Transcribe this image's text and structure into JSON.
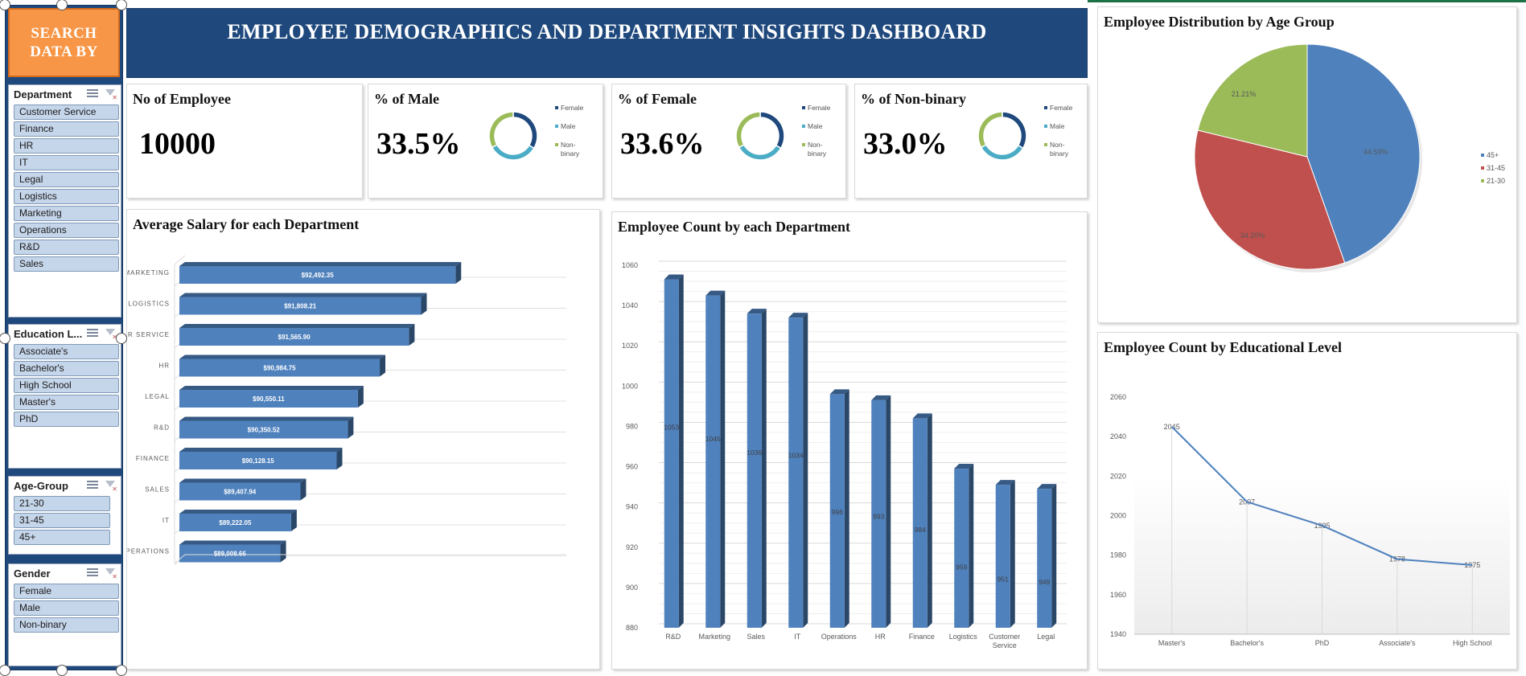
{
  "search_panel": {
    "title_line1": "SEARCH",
    "title_line2": "DATA BY"
  },
  "slicers": {
    "department": {
      "title": "Department",
      "items": [
        "Customer Service",
        "Finance",
        "HR",
        "IT",
        "Legal",
        "Logistics",
        "Marketing",
        "Operations",
        "R&D",
        "Sales"
      ]
    },
    "education": {
      "title": "Education L...",
      "items": [
        "Associate's",
        "Bachelor's",
        "High School",
        "Master's",
        "PhD"
      ]
    },
    "age_group": {
      "title": "Age-Group",
      "items": [
        "21-30",
        "31-45",
        "45+"
      ]
    },
    "gender": {
      "title": "Gender",
      "items": [
        "Female",
        "Male",
        "Non-binary"
      ]
    }
  },
  "header": {
    "title": "EMPLOYEE DEMOGRAPHICS AND DEPARTMENT INSIGHTS DASHBOARD"
  },
  "kpis": {
    "employees": {
      "title": "No of Employee",
      "value": "10000"
    },
    "male": {
      "title": "% of Male",
      "value": "33.5%"
    },
    "female": {
      "title": "% of Female",
      "value": "33.6%"
    },
    "nonbinary": {
      "title": "% of Non-binary",
      "value": "33.0%"
    },
    "legend": {
      "female": "Female",
      "male": "Male",
      "nonbinary_1": "Non-",
      "nonbinary_2": "binary"
    }
  },
  "colors": {
    "navy": "#1f497d",
    "bar_blue": "#4f81bd",
    "female": "#1f497d",
    "male": "#4bacc6",
    "nonbinary": "#9bbb59",
    "orange": "#f79646",
    "red": "#c0504d",
    "green": "#9bbb59"
  },
  "chart_data": [
    {
      "type": "bar",
      "orientation": "horizontal",
      "title": "Average Salary for each Department",
      "categories": [
        "MARKETING",
        "LOGISTICS",
        "CUSTOMER SERVICE",
        "HR",
        "LEGAL",
        "R&D",
        "FINANCE",
        "SALES",
        "IT",
        "OPERATIONS"
      ],
      "values": [
        92492.35,
        91808.21,
        91565.9,
        90984.75,
        90550.11,
        90350.52,
        90128.15,
        89407.94,
        89222.05,
        89008.66
      ],
      "labels": [
        "$92,492.35",
        "$91,808.21",
        "$91,565.90",
        "$90,984.75",
        "$90,550.11",
        "$90,350.52",
        "$90,128.15",
        "$89,407.94",
        "$89,222.05",
        "$89,008.66"
      ],
      "xlim": [
        87000,
        93000
      ]
    },
    {
      "type": "bar",
      "orientation": "vertical",
      "title": "Employee Count by each Department",
      "categories": [
        "R&D",
        "Marketing",
        "Sales",
        "IT",
        "Operations",
        "HR",
        "Finance",
        "Logistics",
        "Customer Service",
        "Legal"
      ],
      "values": [
        1053,
        1045,
        1036,
        1034,
        996,
        993,
        984,
        959,
        951,
        949
      ],
      "ylim": [
        880,
        1060
      ],
      "yticks": [
        880,
        900,
        920,
        940,
        960,
        980,
        1000,
        1020,
        1040,
        1060
      ],
      "grid": true
    },
    {
      "type": "pie",
      "title": "Employee Distribution by Age Group",
      "categories": [
        "45+",
        "31-45",
        "21-30"
      ],
      "values": [
        44.59,
        34.2,
        21.21
      ],
      "labels": [
        "44.59%",
        "34.20%",
        "21.21%"
      ],
      "legend": "right"
    },
    {
      "type": "line",
      "title": "Employee Count by Educational Level",
      "categories": [
        "Master's",
        "Bachelor's",
        "PhD",
        "Associate's",
        "High School"
      ],
      "values": [
        2045,
        2007,
        1995,
        1978,
        1975
      ],
      "ylim": [
        1940,
        2060
      ],
      "yticks": [
        1940,
        1960,
        1980,
        2000,
        2020,
        2040,
        2060
      ]
    }
  ]
}
